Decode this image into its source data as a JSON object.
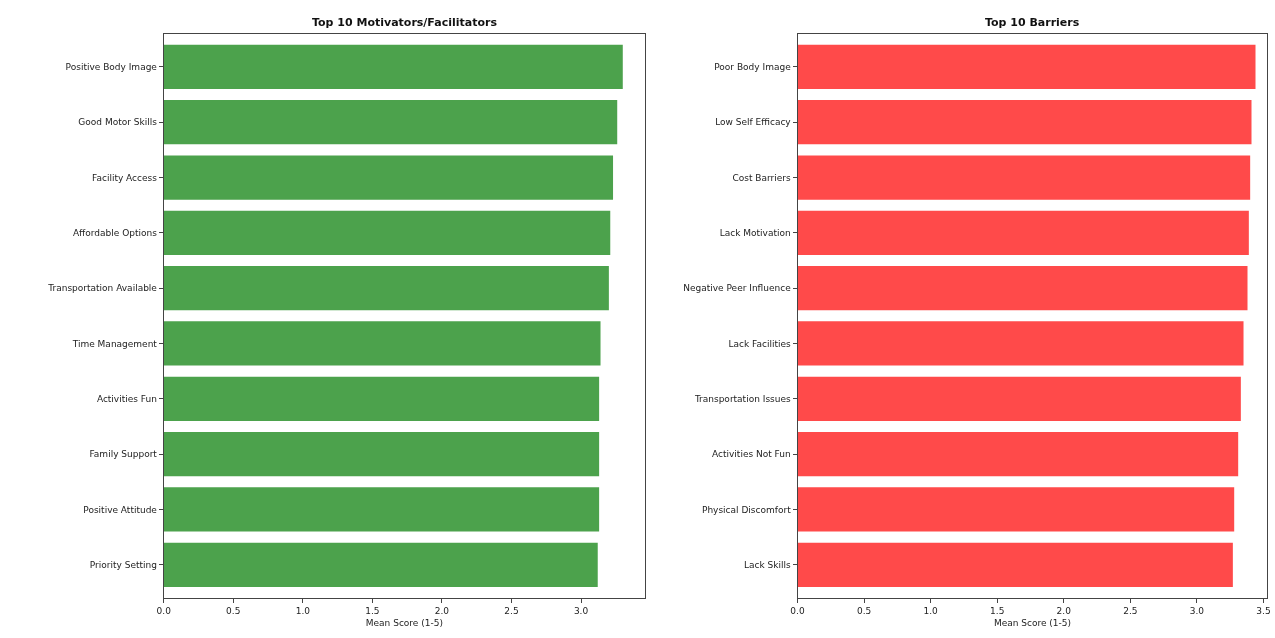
{
  "chart_data": [
    {
      "type": "bar",
      "orientation": "horizontal",
      "title": "Top 10 Motivators/Facilitators",
      "xlabel": "Mean Score (1-5)",
      "categories": [
        "Positive Body Image",
        "Good Motor Skills",
        "Facility Access",
        "Affordable Options",
        "Transportation Available",
        "Time Management",
        "Activities Fun",
        "Family Support",
        "Positive Attitude",
        "Priority Setting"
      ],
      "values": [
        3.3,
        3.26,
        3.23,
        3.21,
        3.2,
        3.14,
        3.13,
        3.13,
        3.13,
        3.12
      ],
      "color": "#4ca24c",
      "xlim": [
        0,
        3.46
      ],
      "xticks": [
        {
          "value": 0,
          "label": "0.0"
        },
        {
          "value": 0.5,
          "label": "0.5"
        },
        {
          "value": 1,
          "label": "1.0"
        },
        {
          "value": 1.5,
          "label": "1.5"
        },
        {
          "value": 2,
          "label": "2.0"
        },
        {
          "value": 2.5,
          "label": "2.5"
        },
        {
          "value": 3,
          "label": "3.0"
        }
      ]
    },
    {
      "type": "bar",
      "orientation": "horizontal",
      "title": "Top 10 Barriers",
      "xlabel": "Mean Score (1-5)",
      "categories": [
        "Poor Body Image",
        "Low Self Efficacy",
        "Cost Barriers",
        "Lack Motivation",
        "Negative Peer Influence",
        "Lack Facilities",
        "Transportation Issues",
        "Activities Not Fun",
        "Physical Discomfort",
        "Lack Skills"
      ],
      "values": [
        3.44,
        3.41,
        3.4,
        3.39,
        3.38,
        3.35,
        3.33,
        3.31,
        3.28,
        3.27
      ],
      "color": "#ff4a4a",
      "xlim": [
        0,
        3.53
      ],
      "xticks": [
        {
          "value": 0,
          "label": "0.0"
        },
        {
          "value": 0.5,
          "label": "0.5"
        },
        {
          "value": 1,
          "label": "1.0"
        },
        {
          "value": 1.5,
          "label": "1.5"
        },
        {
          "value": 2,
          "label": "2.0"
        },
        {
          "value": 2.5,
          "label": "2.5"
        },
        {
          "value": 3,
          "label": "3.0"
        },
        {
          "value": 3.5,
          "label": "3.5"
        }
      ]
    }
  ]
}
